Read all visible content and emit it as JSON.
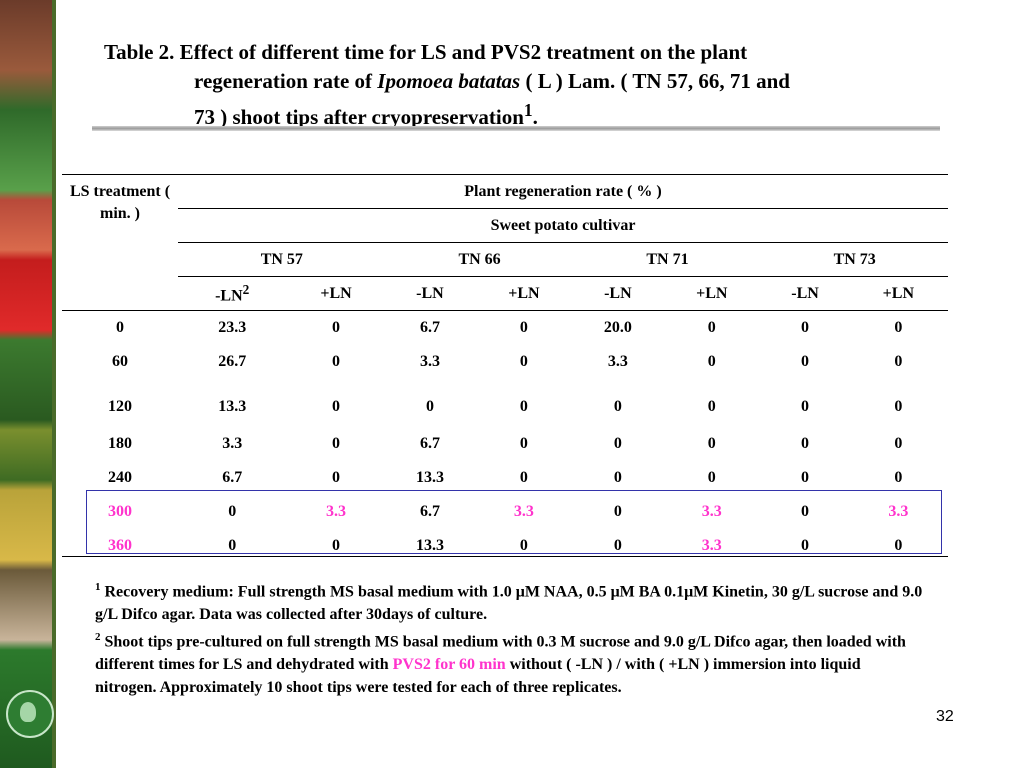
{
  "slide": {
    "title_prefix": "Table 2. Effect of different time for LS and PVS2 treatment on the plant",
    "title_line2_pre": "regeneration rate of ",
    "title_species": "Ipomoea batatas",
    "title_line2_post": " ( L ) Lam. ( TN 57, 66, 71 and",
    "title_line3": "73 ) shoot tips after cryopreservation",
    "title_sup": "1",
    "title_end": ".",
    "page_number": "32"
  },
  "table": {
    "ls_header": "LS treatment ( min. )",
    "group_header": "Plant regeneration rate ( % )",
    "subgroup_header": "Sweet potato cultivar",
    "cultivars": [
      "TN 57",
      "TN 66",
      "TN 71",
      "TN 73"
    ],
    "sub_headers": [
      "-LN",
      "+LN",
      "-LN",
      "+LN",
      "-LN",
      "+LN",
      "-LN",
      "+LN"
    ],
    "first_sub_sup": "2",
    "rows": [
      {
        "ls": "0",
        "values": [
          "23.3",
          "0",
          "6.7",
          "0",
          "20.0",
          "0",
          "0",
          "0"
        ]
      },
      {
        "ls": "60",
        "values": [
          "26.7",
          "0",
          "3.3",
          "0",
          "3.3",
          "0",
          "0",
          "0"
        ]
      },
      {
        "ls": "120",
        "values": [
          "13.3",
          "0",
          "0",
          "0",
          "0",
          "0",
          "0",
          "0"
        ]
      },
      {
        "ls": "180",
        "values": [
          "3.3",
          "0",
          "6.7",
          "0",
          "0",
          "0",
          "0",
          "0"
        ]
      },
      {
        "ls": "240",
        "values": [
          "6.7",
          "0",
          "13.3",
          "0",
          "0",
          "0",
          "0",
          "0"
        ]
      },
      {
        "ls": "300",
        "values": [
          "0",
          "3.3",
          "6.7",
          "3.3",
          "0",
          "3.3",
          "0",
          "3.3"
        ]
      },
      {
        "ls": "360",
        "values": [
          "0",
          "0",
          "13.3",
          "0",
          "0",
          "3.3",
          "0",
          "0"
        ]
      }
    ],
    "highlight_color": "#ff33cc"
  },
  "footnotes": {
    "fn1_sup": "1",
    "fn1_text": " Recovery medium: Full strength MS basal medium with 1.0 μM NAA, 0.5 μM BA 0.1μM Kinetin, 30 g/L sucrose and 9.0 g/L Difco agar. Data was collected after 30days of culture.",
    "fn2_sup": "2",
    "fn2_text_a": " Shoot tips pre-cultured on full strength MS basal medium with 0.3 M sucrose and 9.0 g/L Difco agar, then loaded with different times for LS and dehydrated with ",
    "fn2_highlight": "PVS2 for 60 min",
    "fn2_text_b": " without ( -LN ) / with ( +LN ) immersion into liquid nitrogen. Approximately 10 shoot tips were tested for each of three replicates."
  }
}
